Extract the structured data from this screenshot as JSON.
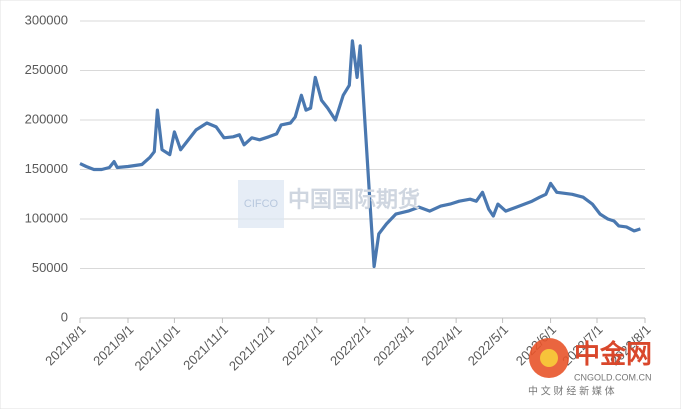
{
  "chart_data": {
    "type": "line",
    "x": [
      "2021/8/1",
      "2021/8/5",
      "2021/8/10",
      "2021/8/15",
      "2021/8/20",
      "2021/8/23",
      "2021/8/25",
      "2021/9/1",
      "2021/9/10",
      "2021/9/15",
      "2021/9/18",
      "2021/9/20",
      "2021/9/23",
      "2021/9/28",
      "2021/10/1",
      "2021/10/5",
      "2021/10/10",
      "2021/10/15",
      "2021/10/22",
      "2021/10/28",
      "2021/11/2",
      "2021/11/8",
      "2021/11/12",
      "2021/11/15",
      "2021/11/20",
      "2021/11/25",
      "2021/12/1",
      "2021/12/6",
      "2021/12/9",
      "2021/12/15",
      "2021/12/18",
      "2021/12/22",
      "2021/12/25",
      "2021/12/28",
      "2021/12/31",
      "2022/1/4",
      "2022/1/8",
      "2022/1/13",
      "2022/1/18",
      "2022/1/22",
      "2022/1/24",
      "2022/1/27",
      "2022/1/29",
      "2022/2/1",
      "2022/2/3",
      "2022/2/5",
      "2022/2/7",
      "2022/2/10",
      "2022/2/15",
      "2022/2/21",
      "2022/3/1",
      "2022/3/8",
      "2022/3/15",
      "2022/3/22",
      "2022/3/28",
      "2022/4/3",
      "2022/4/10",
      "2022/4/14",
      "2022/4/18",
      "2022/4/22",
      "2022/4/25",
      "2022/4/28",
      "2022/5/3",
      "2022/5/10",
      "2022/5/20",
      "2022/5/25",
      "2022/5/29",
      "2022/6/1",
      "2022/6/5",
      "2022/6/15",
      "2022/6/22",
      "2022/6/28",
      "2022/7/3",
      "2022/7/8",
      "2022/7/12",
      "2022/7/15",
      "2022/7/20",
      "2022/7/25",
      "2022/7/29"
    ],
    "series": [
      {
        "name": "value",
        "color": "#4a78b0",
        "values": [
          156000,
          153000,
          150000,
          150000,
          152000,
          158000,
          152000,
          153000,
          155000,
          162000,
          168000,
          210000,
          170000,
          165000,
          188000,
          170000,
          180000,
          190000,
          197000,
          193000,
          182000,
          183000,
          185000,
          175000,
          182000,
          180000,
          183000,
          186000,
          195000,
          197000,
          203000,
          225000,
          210000,
          212000,
          243000,
          220000,
          212000,
          200000,
          225000,
          235000,
          280000,
          243000,
          275000,
          200000,
          150000,
          100000,
          52000,
          85000,
          95000,
          105000,
          108000,
          112000,
          108000,
          113000,
          115000,
          118000,
          120000,
          118000,
          127000,
          110000,
          103000,
          115000,
          108000,
          112000,
          118000,
          122000,
          125000,
          136000,
          127000,
          125000,
          122000,
          115000,
          105000,
          100000,
          98000,
          93000,
          92000,
          88000,
          90000
        ]
      }
    ],
    "xlim": [
      "2021/8/1",
      "2022/8/1"
    ],
    "xticks": [
      "2021/8/1",
      "2021/9/1",
      "2021/10/1",
      "2021/11/1",
      "2021/12/1",
      "2022/1/1",
      "2022/2/1",
      "2022/3/1",
      "2022/4/1",
      "2022/5/1",
      "2022/6/1",
      "2022/7/1",
      "2022/8/1"
    ],
    "ylim": [
      0,
      300000
    ],
    "yticks": [
      0,
      50000,
      100000,
      150000,
      200000,
      250000,
      300000
    ],
    "grid": true,
    "watermarks": [
      "CIFCO",
      "中国国际期货",
      "中金网",
      "CNGOLD.COM.CN",
      "中 文 财 经 新 媒 体"
    ]
  }
}
